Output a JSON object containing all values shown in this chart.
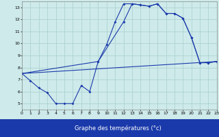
{
  "xlabel": "Graphe des températures (°c)",
  "xlim": [
    0,
    23
  ],
  "ylim": [
    4.5,
    13.5
  ],
  "yticks": [
    5,
    6,
    7,
    8,
    9,
    10,
    11,
    12,
    13
  ],
  "xticks": [
    0,
    1,
    2,
    3,
    4,
    5,
    6,
    7,
    8,
    9,
    10,
    11,
    12,
    13,
    14,
    15,
    16,
    17,
    18,
    19,
    20,
    21,
    22,
    23
  ],
  "bg_color": "#ceeaea",
  "line_color": "#1a3aab",
  "grid_color": "#a8cece",
  "bar_color": "#1a3aab",
  "line1_x": [
    0,
    1,
    2,
    3,
    4,
    5,
    6,
    7,
    8,
    9,
    10,
    11,
    12,
    13,
    14,
    15,
    16,
    17,
    18,
    19,
    20,
    21,
    22,
    23
  ],
  "line1_y": [
    7.5,
    6.9,
    6.3,
    5.9,
    5.0,
    5.0,
    5.0,
    6.5,
    6.0,
    8.5,
    9.9,
    11.8,
    13.3,
    13.3,
    13.2,
    13.1,
    13.3,
    12.5,
    12.5,
    12.1,
    10.5,
    8.4,
    8.4,
    8.5
  ],
  "line2_x": [
    0,
    23
  ],
  "line2_y": [
    7.5,
    8.5
  ],
  "line3_x": [
    0,
    9,
    12,
    13,
    14,
    15,
    16,
    17,
    18,
    19,
    20,
    21,
    22,
    23
  ],
  "line3_y": [
    7.5,
    8.5,
    11.8,
    13.3,
    13.2,
    13.1,
    13.3,
    12.5,
    12.5,
    12.1,
    10.5,
    8.4,
    8.4,
    8.5
  ]
}
